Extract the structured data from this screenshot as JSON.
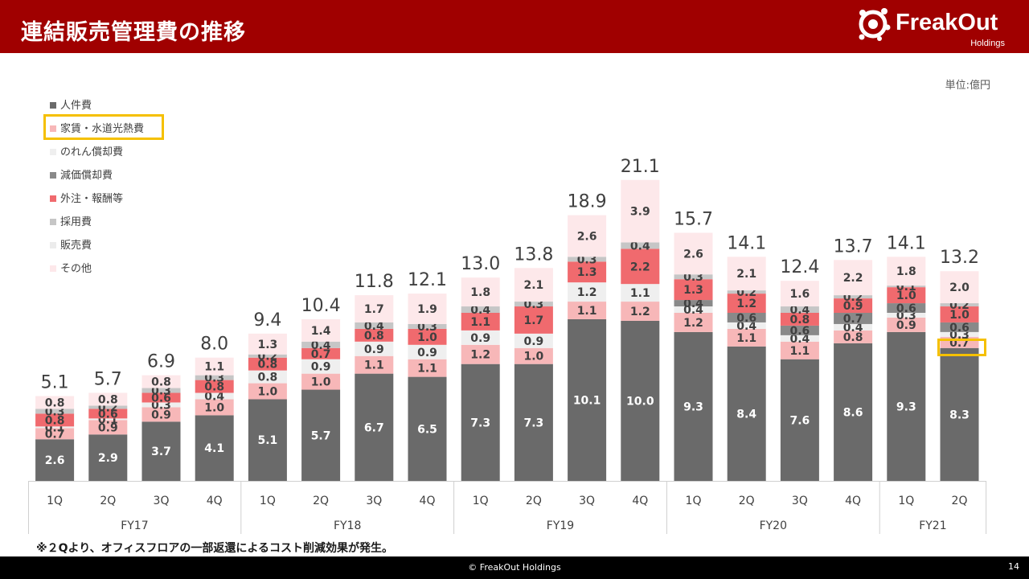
{
  "header": {
    "title": "連結販売管理費の推移",
    "logo_text": "FreakOut",
    "logo_sub": "Holdings"
  },
  "unit_label": "単位:億円",
  "legend": [
    {
      "label": "人件費",
      "color": "#6a6a6a"
    },
    {
      "label": "家賃・水道光熱費",
      "color": "#f7b7b8"
    },
    {
      "label": "のれん償却費",
      "color": "#efefef"
    },
    {
      "label": "減価償却費",
      "color": "#898989"
    },
    {
      "label": "外注・報酬等",
      "color": "#f06a6e"
    },
    {
      "label": "採用費",
      "color": "#c6c6c6"
    },
    {
      "label": "販売費",
      "color": "#ececec"
    },
    {
      "label": "その他",
      "color": "#fde8ea"
    }
  ],
  "footnote": "※２Qより、オフィスフロアの一部返還によるコスト削減効果が発生。",
  "footer": {
    "copyright": "© FreakOut Holdings",
    "page": "14"
  },
  "chart_data": {
    "type": "bar",
    "stacked": true,
    "categories": [
      "1Q",
      "2Q",
      "3Q",
      "4Q",
      "1Q",
      "2Q",
      "3Q",
      "4Q",
      "1Q",
      "2Q",
      "3Q",
      "4Q",
      "1Q",
      "2Q",
      "3Q",
      "4Q",
      "1Q",
      "2Q"
    ],
    "groups": [
      {
        "label": "FY17",
        "count": 4
      },
      {
        "label": "FY18",
        "count": 4
      },
      {
        "label": "FY19",
        "count": 4
      },
      {
        "label": "FY20",
        "count": 4
      },
      {
        "label": "FY21",
        "count": 2
      }
    ],
    "totals": [
      "5.1",
      "5.7",
      "6.9",
      "8.0",
      "9.4",
      "10.4",
      "11.8",
      "12.1",
      "13.0",
      "13.8",
      "18.9",
      "21.1",
      "15.7",
      "14.1",
      "12.4",
      "13.7",
      "14.1",
      "13.2"
    ],
    "series": [
      {
        "name": "人件費",
        "color": "#6a6a6a",
        "label_color": "#ffffff",
        "values": [
          2.6,
          2.9,
          3.7,
          4.1,
          5.1,
          5.7,
          6.7,
          6.5,
          7.3,
          7.3,
          10.1,
          10.0,
          9.3,
          8.4,
          7.6,
          8.6,
          9.3,
          8.3
        ]
      },
      {
        "name": "家賃・水道光熱費",
        "color": "#f7b7b8",
        "label_color": "#404040",
        "values": [
          0.7,
          0.9,
          0.9,
          1.0,
          1.0,
          1.0,
          1.1,
          1.1,
          1.2,
          1.0,
          1.1,
          1.2,
          1.2,
          1.1,
          1.1,
          0.8,
          0.9,
          0.7
        ]
      },
      {
        "name": "のれん償却費",
        "color": "#efefef",
        "label_color": "#404040",
        "values": [
          0.1,
          0.1,
          0.3,
          0.4,
          0.8,
          0.9,
          0.9,
          0.9,
          0.9,
          0.9,
          1.2,
          1.1,
          0.4,
          0.4,
          0.4,
          0.4,
          0.3,
          0.3
        ]
      },
      {
        "name": "減価償却費",
        "color": "#898989",
        "label_color": "#404040",
        "values": [
          null,
          null,
          null,
          null,
          null,
          null,
          null,
          null,
          null,
          null,
          null,
          null,
          0.4,
          0.6,
          0.6,
          0.7,
          0.6,
          0.6
        ]
      },
      {
        "name": "外注・報酬等",
        "color": "#f06a6e",
        "label_color": "#404040",
        "values": [
          0.8,
          0.6,
          0.6,
          0.8,
          0.8,
          0.7,
          0.8,
          1.0,
          1.1,
          1.7,
          1.3,
          2.2,
          1.3,
          1.2,
          0.8,
          0.9,
          1.0,
          1.0
        ]
      },
      {
        "name": "採用費",
        "color": "#c6c6c6",
        "label_color": "#404040",
        "values": [
          0.3,
          0.2,
          0.3,
          0.3,
          0.2,
          0.4,
          0.4,
          0.3,
          0.4,
          0.3,
          0.3,
          0.4,
          0.3,
          0.2,
          0.4,
          0.2,
          0.1,
          0.2
        ]
      },
      {
        "name": "販売費",
        "color": "#ececec",
        "label_color": "#404040",
        "values": [
          null,
          null,
          null,
          null,
          null,
          null,
          null,
          null,
          null,
          null,
          null,
          null,
          null,
          null,
          null,
          null,
          null,
          null
        ]
      },
      {
        "name": "その他",
        "color": "#fde8ea",
        "label_color": "#404040",
        "values": [
          0.8,
          0.8,
          0.8,
          1.1,
          1.3,
          1.4,
          1.7,
          1.9,
          1.8,
          2.1,
          2.6,
          3.9,
          2.6,
          2.1,
          1.6,
          2.2,
          1.8,
          2.0
        ]
      }
    ],
    "ylim": [
      0,
      21.1
    ]
  }
}
